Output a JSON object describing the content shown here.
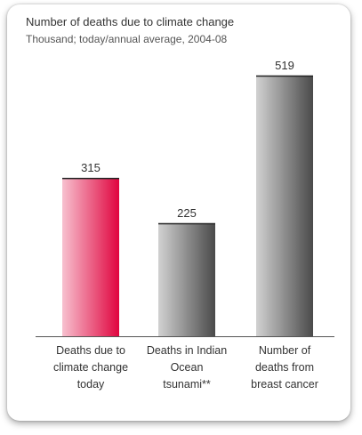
{
  "chart_data": {
    "type": "bar",
    "title": "Number of deaths due to climate change",
    "subtitle": "Thousand; today/annual average, 2004-08",
    "categories": [
      "Deaths due to\nclimate change\ntoday",
      "Deaths in Indian\nOcean\ntsunami**",
      "Number of\ndeaths from\nbreast cancer"
    ],
    "values": [
      315,
      225,
      519
    ],
    "colors": [
      "#e0053f",
      "#4a4a4a",
      "#4a4a4a"
    ]
  }
}
